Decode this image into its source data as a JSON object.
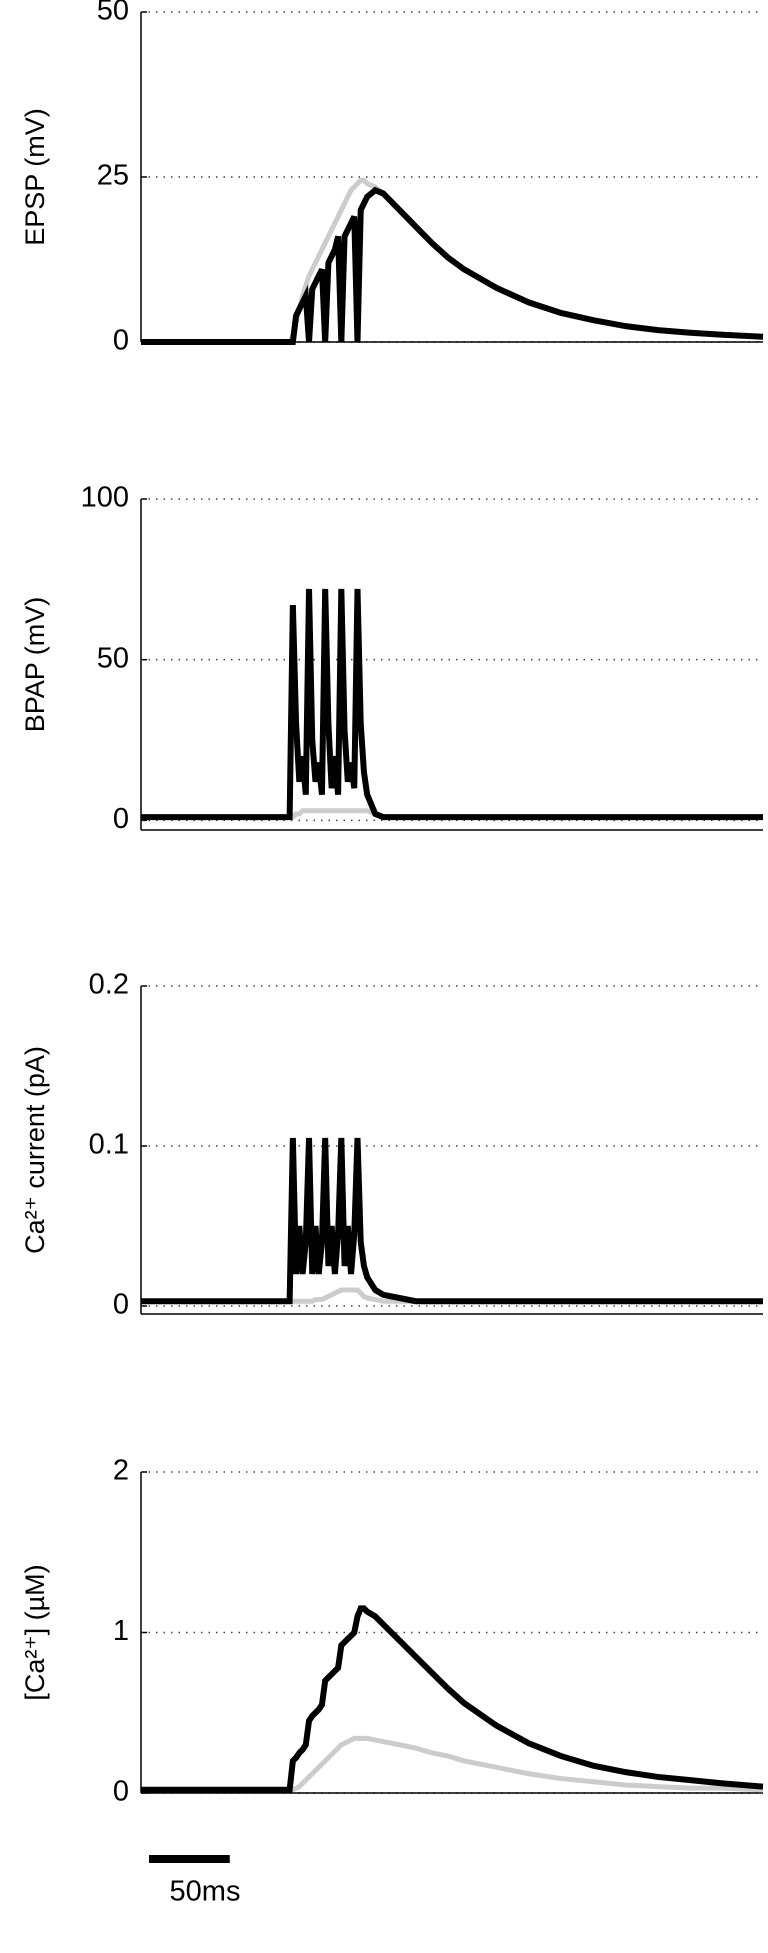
{
  "chart_data": [
    {
      "type": "line",
      "y_label": "EPSP (mV)",
      "x": [
        0,
        92,
        94,
        96,
        98,
        100,
        102,
        104,
        106,
        108,
        110,
        112,
        114,
        116,
        118,
        120,
        122,
        124,
        126,
        128,
        130,
        132,
        134,
        136,
        138,
        140,
        145,
        150,
        160,
        170,
        180,
        190,
        200,
        220,
        240,
        260,
        280,
        300,
        320,
        340,
        360,
        385
      ],
      "xlim": [
        0,
        385
      ],
      "ylim": [
        0,
        50
      ],
      "yticks": [
        0,
        25,
        50
      ],
      "grid": true,
      "series": [
        {
          "color": "#cccccc",
          "values": [
            0,
            0,
            1,
            3,
            5,
            7,
            8.5,
            10,
            11,
            12,
            13,
            14,
            15,
            16,
            17,
            18,
            19,
            20,
            21,
            22,
            23,
            23.5,
            24,
            24.5,
            24.5,
            24,
            23.5,
            22.5,
            20,
            17.5,
            15,
            12.8,
            11,
            8.2,
            6,
            4.4,
            3.3,
            2.4,
            1.8,
            1.4,
            1.1,
            0.8
          ]
        },
        {
          "color": "#000000",
          "values": [
            0,
            0,
            0,
            4,
            5,
            6,
            7,
            0,
            8,
            9,
            10,
            11,
            0,
            12,
            13,
            14,
            16,
            0,
            16,
            17,
            18,
            19,
            0,
            20,
            21,
            22,
            23,
            22.5,
            20,
            17.5,
            15,
            12.8,
            11,
            8.2,
            6,
            4.4,
            3.3,
            2.4,
            1.8,
            1.4,
            1.1,
            0.8
          ]
        }
      ]
    },
    {
      "type": "line",
      "y_label": "BPAP (mV)",
      "x": [
        0,
        92,
        94,
        96,
        98,
        100,
        102,
        104,
        106,
        108,
        110,
        112,
        114,
        116,
        118,
        120,
        122,
        124,
        126,
        128,
        130,
        132,
        134,
        136,
        138,
        140,
        145,
        150,
        160,
        170,
        180,
        190,
        200,
        220,
        240,
        260,
        280,
        300,
        320,
        340,
        360,
        385
      ],
      "xlim": [
        0,
        385
      ],
      "ylim": [
        -3,
        100
      ],
      "yticks": [
        0,
        50,
        100
      ],
      "grid": true,
      "series": [
        {
          "color": "#cccccc",
          "values": [
            1,
            1,
            1,
            2,
            2,
            3,
            3,
            3,
            3,
            3,
            3,
            3,
            3,
            3,
            3,
            3,
            3,
            3,
            3,
            3,
            3,
            3,
            3,
            3,
            3,
            3,
            2,
            1,
            1,
            1,
            1,
            1,
            1,
            1,
            1,
            1,
            1,
            1,
            1,
            1,
            1,
            1
          ]
        },
        {
          "color": "#000000",
          "values": [
            1,
            1,
            67,
            30,
            12,
            20,
            8,
            72,
            25,
            12,
            18,
            8,
            72,
            30,
            10,
            20,
            8,
            72,
            28,
            12,
            18,
            10,
            72,
            30,
            15,
            8,
            2,
            1,
            1,
            1,
            1,
            1,
            1,
            1,
            1,
            1,
            1,
            1,
            1,
            1,
            1,
            1
          ]
        }
      ]
    },
    {
      "type": "line",
      "y_label": "Ca²⁺ current (pA)",
      "x": [
        0,
        92,
        94,
        96,
        98,
        100,
        102,
        104,
        106,
        108,
        110,
        112,
        114,
        116,
        118,
        120,
        122,
        124,
        126,
        128,
        130,
        132,
        134,
        136,
        138,
        140,
        145,
        150,
        160,
        170,
        180,
        190,
        200,
        220,
        240,
        260,
        280,
        300,
        320,
        340,
        360,
        385
      ],
      "xlim": [
        0,
        385
      ],
      "ylim": [
        -0.005,
        0.2
      ],
      "yticks": [
        0,
        0.1,
        0.2
      ],
      "grid": true,
      "series": [
        {
          "color": "#cccccc",
          "values": [
            0.003,
            0.003,
            0.003,
            0.003,
            0.003,
            0.003,
            0.003,
            0.003,
            0.003,
            0.004,
            0.004,
            0.004,
            0.005,
            0.006,
            0.007,
            0.008,
            0.009,
            0.01,
            0.01,
            0.01,
            0.01,
            0.01,
            0.01,
            0.008,
            0.006,
            0.005,
            0.004,
            0.003,
            0.003,
            0.003,
            0.003,
            0.003,
            0.003,
            0.003,
            0.003,
            0.003,
            0.003,
            0.003,
            0.003,
            0.003,
            0.003,
            0.003
          ]
        },
        {
          "color": "#000000",
          "values": [
            0.003,
            0.003,
            0.105,
            0.02,
            0.05,
            0.02,
            0.04,
            0.105,
            0.02,
            0.05,
            0.02,
            0.04,
            0.105,
            0.025,
            0.05,
            0.02,
            0.045,
            0.105,
            0.025,
            0.05,
            0.02,
            0.045,
            0.105,
            0.04,
            0.025,
            0.018,
            0.01,
            0.007,
            0.005,
            0.003,
            0.003,
            0.003,
            0.003,
            0.003,
            0.003,
            0.003,
            0.003,
            0.003,
            0.003,
            0.003,
            0.003,
            0.003
          ]
        }
      ]
    },
    {
      "type": "line",
      "y_label": "[Ca²⁺] (µM)",
      "x": [
        0,
        92,
        94,
        96,
        98,
        100,
        102,
        104,
        106,
        108,
        110,
        112,
        114,
        116,
        118,
        120,
        122,
        124,
        126,
        128,
        130,
        132,
        134,
        136,
        138,
        140,
        145,
        150,
        160,
        170,
        180,
        190,
        200,
        220,
        240,
        260,
        280,
        300,
        320,
        340,
        360,
        385
      ],
      "xlim": [
        0,
        385
      ],
      "ylim": [
        0,
        2
      ],
      "yticks": [
        0,
        1,
        2
      ],
      "grid": true,
      "series": [
        {
          "color": "#cccccc",
          "values": [
            0.02,
            0.02,
            0.02,
            0.03,
            0.04,
            0.06,
            0.08,
            0.1,
            0.12,
            0.14,
            0.16,
            0.18,
            0.2,
            0.22,
            0.24,
            0.26,
            0.28,
            0.3,
            0.31,
            0.32,
            0.33,
            0.34,
            0.34,
            0.34,
            0.34,
            0.34,
            0.33,
            0.32,
            0.3,
            0.28,
            0.25,
            0.23,
            0.2,
            0.16,
            0.12,
            0.09,
            0.07,
            0.05,
            0.04,
            0.03,
            0.03,
            0.02
          ]
        },
        {
          "color": "#000000",
          "values": [
            0.02,
            0.02,
            0.2,
            0.22,
            0.25,
            0.27,
            0.3,
            0.45,
            0.48,
            0.5,
            0.52,
            0.55,
            0.7,
            0.72,
            0.74,
            0.76,
            0.78,
            0.92,
            0.94,
            0.96,
            0.98,
            1.0,
            1.1,
            1.15,
            1.15,
            1.13,
            1.1,
            1.05,
            0.95,
            0.85,
            0.75,
            0.65,
            0.56,
            0.42,
            0.31,
            0.23,
            0.17,
            0.13,
            0.1,
            0.08,
            0.06,
            0.04
          ]
        }
      ]
    }
  ],
  "scale_bar": {
    "value": 50,
    "label": "50ms"
  }
}
